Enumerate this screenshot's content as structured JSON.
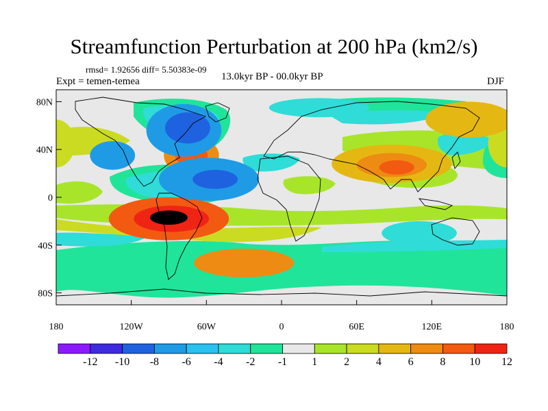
{
  "title": "Streamfunction Perturbation at 200 hPa (km2/s)",
  "stats": "rmsd= 1.92656 diff= 5.50383e-09",
  "expt": "Expt = temen-temea",
  "period": "13.0kyr BP - 00.0kyr BP",
  "season": "DJF",
  "axes": {
    "lat_labels": [
      "80N",
      "40N",
      "0",
      "40S",
      "80S"
    ],
    "lat_values": [
      80,
      40,
      0,
      -40,
      -80
    ],
    "lon_labels": [
      "180",
      "120W",
      "60W",
      "0",
      "60E",
      "120E",
      "180"
    ],
    "lon_values": [
      -180,
      -120,
      -60,
      0,
      60,
      120,
      180
    ]
  },
  "colorbar": {
    "labels": [
      "-12",
      "-10",
      "-8",
      "-6",
      "-4",
      "-2",
      "-1",
      "1",
      "2",
      "4",
      "6",
      "8",
      "10",
      "12"
    ],
    "colors": [
      "#8c1aff",
      "#3e2adf",
      "#1f62e0",
      "#1f9be6",
      "#2ac1f0",
      "#2fdcd7",
      "#20e49a",
      "#e8e8e8",
      "#a8e52a",
      "#cbdb22",
      "#e5b712",
      "#ee8b12",
      "#f25a12",
      "#f02414"
    ]
  },
  "anomalies": [
    {
      "lon": -90,
      "lat": -18,
      "rx": 48,
      "ry": 18,
      "level": 12
    },
    {
      "lon": -88,
      "lat": -18,
      "rx": 30,
      "ry": 11,
      "level": 13
    },
    {
      "lon": -90,
      "lat": -17,
      "rx": 15,
      "ry": 6,
      "level": 14
    },
    {
      "lon": -72,
      "lat": 35,
      "rx": 22,
      "ry": 16,
      "level": 11
    },
    {
      "lon": -72,
      "lat": 35,
      "rx": 13,
      "ry": 9,
      "level": 12
    },
    {
      "lon": 88,
      "lat": 28,
      "rx": 48,
      "ry": 16,
      "level": 10
    },
    {
      "lon": 88,
      "lat": 27,
      "rx": 28,
      "ry": 10,
      "level": 11
    },
    {
      "lon": 92,
      "lat": 25,
      "rx": 14,
      "ry": 6,
      "level": 12
    },
    {
      "lon": -180,
      "lat": 45,
      "rx": 15,
      "ry": 20,
      "level": 9
    },
    {
      "lon": 180,
      "lat": 45,
      "rx": 15,
      "ry": 20,
      "level": 9
    },
    {
      "lon": 150,
      "lat": 65,
      "rx": 35,
      "ry": 15,
      "level": 10
    },
    {
      "lon": -78,
      "lat": 56,
      "rx": 30,
      "ry": 22,
      "level": 3
    },
    {
      "lon": -75,
      "lat": 58,
      "rx": 18,
      "ry": 13,
      "level": 2
    },
    {
      "lon": -135,
      "lat": 35,
      "rx": 18,
      "ry": 12,
      "level": 3
    },
    {
      "lon": -58,
      "lat": 15,
      "rx": 40,
      "ry": 18,
      "level": 3
    },
    {
      "lon": -53,
      "lat": 15,
      "rx": 18,
      "ry": 8,
      "level": 2
    },
    {
      "lon": -30,
      "lat": -55,
      "rx": 40,
      "ry": 12,
      "level": 11
    },
    {
      "lon": 110,
      "lat": -30,
      "rx": 30,
      "ry": 10,
      "level": 5
    },
    {
      "lon": 30,
      "lat": 75,
      "rx": 40,
      "ry": 8,
      "level": 5
    }
  ]
}
